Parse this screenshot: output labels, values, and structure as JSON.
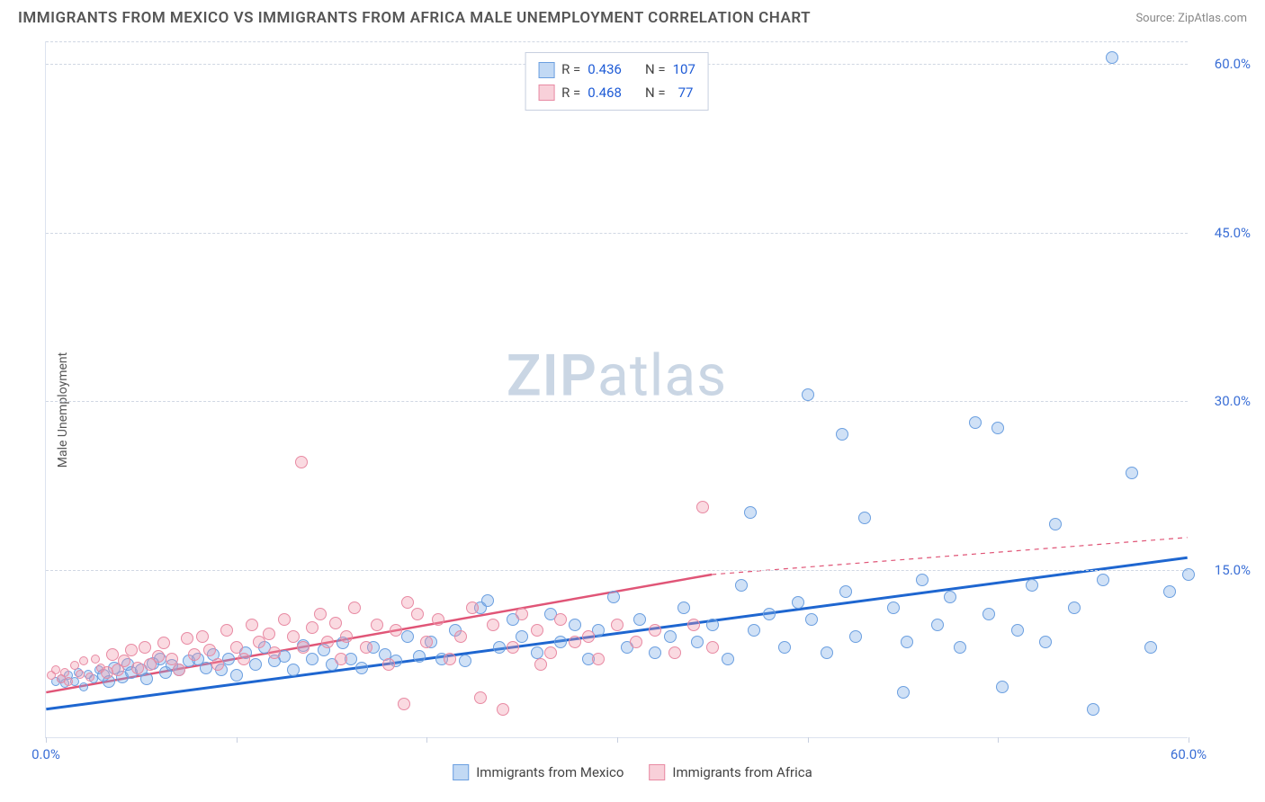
{
  "header": {
    "title": "IMMIGRANTS FROM MEXICO VS IMMIGRANTS FROM AFRICA MALE UNEMPLOYMENT CORRELATION CHART",
    "source_label": "Source:",
    "source_value": "ZipAtlas.com"
  },
  "watermark": {
    "part1": "ZIP",
    "part2": "atlas"
  },
  "y_axis": {
    "label": "Male Unemployment"
  },
  "chart": {
    "type": "scatter",
    "xlim": [
      0,
      60
    ],
    "ylim": [
      0,
      62
    ],
    "x_ticks": [
      0,
      10,
      20,
      30,
      40,
      50,
      60
    ],
    "x_tick_labels": {
      "0": "0.0%",
      "60": "60.0%"
    },
    "y_ticks": [
      15,
      30,
      45,
      60
    ],
    "y_tick_labels": [
      "15.0%",
      "30.0%",
      "45.0%",
      "60.0%"
    ],
    "gridline_color": "#d0d7e3",
    "background_color": "#ffffff",
    "marker_size": 14,
    "series": [
      {
        "id": "mexico",
        "label": "Immigrants from Mexico",
        "color_fill": "rgba(120,170,230,0.35)",
        "color_stroke": "#6b9fe0",
        "trend": {
          "x0": 0,
          "y0": 2.5,
          "x1": 60,
          "y1": 16.0,
          "color": "#1e66d0",
          "width": 3
        },
        "stats": {
          "R": "0.436",
          "N": "107"
        },
        "points": [
          [
            0.5,
            5.0
          ],
          [
            0.8,
            5.2
          ],
          [
            1.0,
            4.8
          ],
          [
            1.2,
            5.5
          ],
          [
            1.5,
            5.0
          ],
          [
            1.7,
            5.8
          ],
          [
            2.0,
            4.5
          ],
          [
            2.2,
            5.6
          ],
          [
            2.5,
            5.2
          ],
          [
            2.8,
            6.0
          ],
          [
            3.0,
            5.5
          ],
          [
            3.3,
            5.0
          ],
          [
            3.6,
            6.2
          ],
          [
            4.0,
            5.4
          ],
          [
            4.3,
            6.5
          ],
          [
            4.5,
            5.8
          ],
          [
            5.0,
            6.0
          ],
          [
            5.3,
            5.2
          ],
          [
            5.6,
            6.6
          ],
          [
            6.0,
            7.0
          ],
          [
            6.3,
            5.8
          ],
          [
            6.6,
            6.4
          ],
          [
            7.0,
            6.0
          ],
          [
            7.5,
            6.8
          ],
          [
            8.0,
            7.0
          ],
          [
            8.4,
            6.2
          ],
          [
            8.8,
            7.4
          ],
          [
            9.2,
            6.0
          ],
          [
            9.6,
            7.0
          ],
          [
            10.0,
            5.5
          ],
          [
            10.5,
            7.5
          ],
          [
            11.0,
            6.5
          ],
          [
            11.5,
            8.0
          ],
          [
            12.0,
            6.8
          ],
          [
            12.5,
            7.2
          ],
          [
            13.0,
            6.0
          ],
          [
            13.5,
            8.2
          ],
          [
            14.0,
            7.0
          ],
          [
            14.6,
            7.8
          ],
          [
            15.0,
            6.5
          ],
          [
            15.6,
            8.4
          ],
          [
            16.0,
            7.0
          ],
          [
            16.6,
            6.2
          ],
          [
            17.2,
            8.0
          ],
          [
            17.8,
            7.4
          ],
          [
            18.4,
            6.8
          ],
          [
            19.0,
            9.0
          ],
          [
            19.6,
            7.2
          ],
          [
            20.2,
            8.5
          ],
          [
            20.8,
            7.0
          ],
          [
            21.5,
            9.5
          ],
          [
            22.0,
            6.8
          ],
          [
            22.8,
            11.5
          ],
          [
            23.2,
            12.2
          ],
          [
            23.8,
            8.0
          ],
          [
            24.5,
            10.5
          ],
          [
            25.0,
            9.0
          ],
          [
            25.8,
            7.5
          ],
          [
            26.5,
            11.0
          ],
          [
            27.0,
            8.5
          ],
          [
            27.8,
            10.0
          ],
          [
            28.5,
            7.0
          ],
          [
            29.0,
            9.5
          ],
          [
            29.8,
            12.5
          ],
          [
            30.5,
            8.0
          ],
          [
            31.2,
            10.5
          ],
          [
            32.0,
            7.5
          ],
          [
            32.8,
            9.0
          ],
          [
            33.5,
            11.5
          ],
          [
            34.2,
            8.5
          ],
          [
            35.0,
            10.0
          ],
          [
            35.8,
            7.0
          ],
          [
            36.5,
            13.5
          ],
          [
            37.0,
            20.0
          ],
          [
            37.2,
            9.5
          ],
          [
            38.0,
            11.0
          ],
          [
            38.8,
            8.0
          ],
          [
            39.5,
            12.0
          ],
          [
            40.0,
            30.5
          ],
          [
            40.2,
            10.5
          ],
          [
            41.0,
            7.5
          ],
          [
            41.8,
            27.0
          ],
          [
            42.0,
            13.0
          ],
          [
            42.5,
            9.0
          ],
          [
            43.0,
            19.5
          ],
          [
            44.5,
            11.5
          ],
          [
            45.0,
            4.0
          ],
          [
            45.2,
            8.5
          ],
          [
            46.0,
            14.0
          ],
          [
            46.8,
            10.0
          ],
          [
            47.5,
            12.5
          ],
          [
            48.0,
            8.0
          ],
          [
            48.8,
            28.0
          ],
          [
            49.5,
            11.0
          ],
          [
            50.0,
            27.5
          ],
          [
            50.2,
            4.5
          ],
          [
            51.0,
            9.5
          ],
          [
            51.8,
            13.5
          ],
          [
            52.5,
            8.5
          ],
          [
            53.0,
            19.0
          ],
          [
            54.0,
            11.5
          ],
          [
            55.0,
            2.5
          ],
          [
            55.5,
            14.0
          ],
          [
            56.0,
            60.5
          ],
          [
            57.0,
            23.5
          ],
          [
            58.0,
            8.0
          ],
          [
            59.0,
            13.0
          ],
          [
            60.0,
            14.5
          ]
        ]
      },
      {
        "id": "africa",
        "label": "Immigrants from Africa",
        "color_fill": "rgba(240,150,170,0.35)",
        "color_stroke": "#e88aa3",
        "trend": {
          "x0": 0,
          "y0": 4.0,
          "x1": 35,
          "y1": 14.5,
          "color": "#e05577",
          "width": 2.5,
          "extend_dash_to": 60,
          "extend_y": 17.8
        },
        "stats": {
          "R": "0.468",
          "N": "77"
        },
        "points": [
          [
            0.3,
            5.5
          ],
          [
            0.5,
            6.0
          ],
          [
            0.8,
            5.2
          ],
          [
            1.0,
            5.8
          ],
          [
            1.2,
            5.0
          ],
          [
            1.5,
            6.4
          ],
          [
            1.8,
            5.6
          ],
          [
            2.0,
            6.8
          ],
          [
            2.3,
            5.4
          ],
          [
            2.6,
            7.0
          ],
          [
            2.9,
            6.2
          ],
          [
            3.2,
            5.8
          ],
          [
            3.5,
            7.4
          ],
          [
            3.8,
            6.0
          ],
          [
            4.1,
            6.8
          ],
          [
            4.5,
            7.8
          ],
          [
            4.8,
            6.2
          ],
          [
            5.2,
            8.0
          ],
          [
            5.5,
            6.5
          ],
          [
            5.9,
            7.2
          ],
          [
            6.2,
            8.4
          ],
          [
            6.6,
            7.0
          ],
          [
            7.0,
            6.0
          ],
          [
            7.4,
            8.8
          ],
          [
            7.8,
            7.4
          ],
          [
            8.2,
            9.0
          ],
          [
            8.6,
            7.8
          ],
          [
            9.0,
            6.5
          ],
          [
            9.5,
            9.5
          ],
          [
            10.0,
            8.0
          ],
          [
            10.4,
            7.0
          ],
          [
            10.8,
            10.0
          ],
          [
            11.2,
            8.5
          ],
          [
            11.7,
            9.2
          ],
          [
            12.0,
            7.5
          ],
          [
            12.5,
            10.5
          ],
          [
            13.0,
            9.0
          ],
          [
            13.4,
            24.5
          ],
          [
            13.5,
            8.0
          ],
          [
            14.0,
            9.8
          ],
          [
            14.4,
            11.0
          ],
          [
            14.8,
            8.5
          ],
          [
            15.2,
            10.2
          ],
          [
            15.8,
            9.0
          ],
          [
            16.2,
            11.5
          ],
          [
            16.8,
            8.0
          ],
          [
            17.4,
            10.0
          ],
          [
            18.0,
            6.5
          ],
          [
            18.4,
            9.5
          ],
          [
            18.8,
            3.0
          ],
          [
            19.5,
            11.0
          ],
          [
            20.0,
            8.5
          ],
          [
            20.6,
            10.5
          ],
          [
            21.2,
            7.0
          ],
          [
            21.8,
            9.0
          ],
          [
            22.4,
            11.5
          ],
          [
            22.8,
            3.5
          ],
          [
            23.5,
            10.0
          ],
          [
            24.0,
            2.5
          ],
          [
            24.5,
            8.0
          ],
          [
            25.0,
            11.0
          ],
          [
            25.8,
            9.5
          ],
          [
            26.5,
            7.5
          ],
          [
            27.0,
            10.5
          ],
          [
            27.8,
            8.5
          ],
          [
            28.5,
            9.0
          ],
          [
            29.0,
            7.0
          ],
          [
            30.0,
            10.0
          ],
          [
            31.0,
            8.5
          ],
          [
            32.0,
            9.5
          ],
          [
            33.0,
            7.5
          ],
          [
            34.0,
            10.0
          ],
          [
            34.5,
            20.5
          ],
          [
            35.0,
            8.0
          ],
          [
            26.0,
            6.5
          ],
          [
            19.0,
            12.0
          ],
          [
            15.5,
            7.0
          ]
        ]
      }
    ]
  },
  "legend_top": {
    "r_label": "R =",
    "n_label": "N ="
  },
  "legend_bottom": {
    "items": [
      {
        "swatch": "blue",
        "label": "Immigrants from Mexico"
      },
      {
        "swatch": "pink",
        "label": "Immigrants from Africa"
      }
    ]
  }
}
